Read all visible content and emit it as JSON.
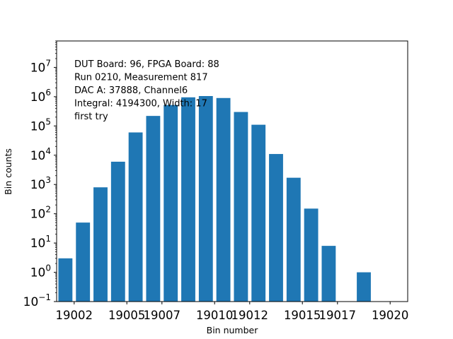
{
  "chart_data": {
    "type": "bar",
    "xlabel": "Bin number",
    "ylabel": "Bin counts",
    "yscale": "log",
    "ylim": [
      0.1,
      80000000
    ],
    "xlim": [
      19000.5,
      19020.5
    ],
    "bar_color": "#1f77b4",
    "x": [
      19001,
      19002,
      19003,
      19004,
      19005,
      19006,
      19007,
      19008,
      19009,
      19010,
      19011,
      19012,
      19013,
      19014,
      19015,
      19016,
      19017,
      19018,
      19019
    ],
    "values": [
      3,
      50,
      800,
      6000,
      60000,
      220000,
      520000,
      950000,
      1050000,
      900000,
      300000,
      110000,
      11000,
      1700,
      150,
      8,
      0,
      1,
      null
    ],
    "x_ticks": [
      {
        "value": 19001.5,
        "label": "19002"
      },
      {
        "value": 19004.5,
        "label": "19005"
      },
      {
        "value": 19006.5,
        "label": "19007"
      },
      {
        "value": 19009.5,
        "label": "19010"
      },
      {
        "value": 19011.5,
        "label": "19012"
      },
      {
        "value": 19014.5,
        "label": "19015"
      },
      {
        "value": 19016.5,
        "label": "19017"
      },
      {
        "value": 19019.5,
        "label": "19020"
      }
    ],
    "y_ticks": [
      {
        "exp": -1,
        "base": "10",
        "sup": "−1"
      },
      {
        "exp": 0,
        "base": "10",
        "sup": "0"
      },
      {
        "exp": 1,
        "base": "10",
        "sup": "1"
      },
      {
        "exp": 2,
        "base": "10",
        "sup": "2"
      },
      {
        "exp": 3,
        "base": "10",
        "sup": "3"
      },
      {
        "exp": 4,
        "base": "10",
        "sup": "4"
      },
      {
        "exp": 5,
        "base": "10",
        "sup": "5"
      },
      {
        "exp": 6,
        "base": "10",
        "sup": "6"
      },
      {
        "exp": 7,
        "base": "10",
        "sup": "7"
      }
    ],
    "annotations": [
      "DUT Board: 96, FPGA Board: 88",
      "Run 0210, Measurement 817",
      "DAC A: 37888, Channel6",
      "Integral: 4194300, Width: 17",
      "first try"
    ]
  }
}
